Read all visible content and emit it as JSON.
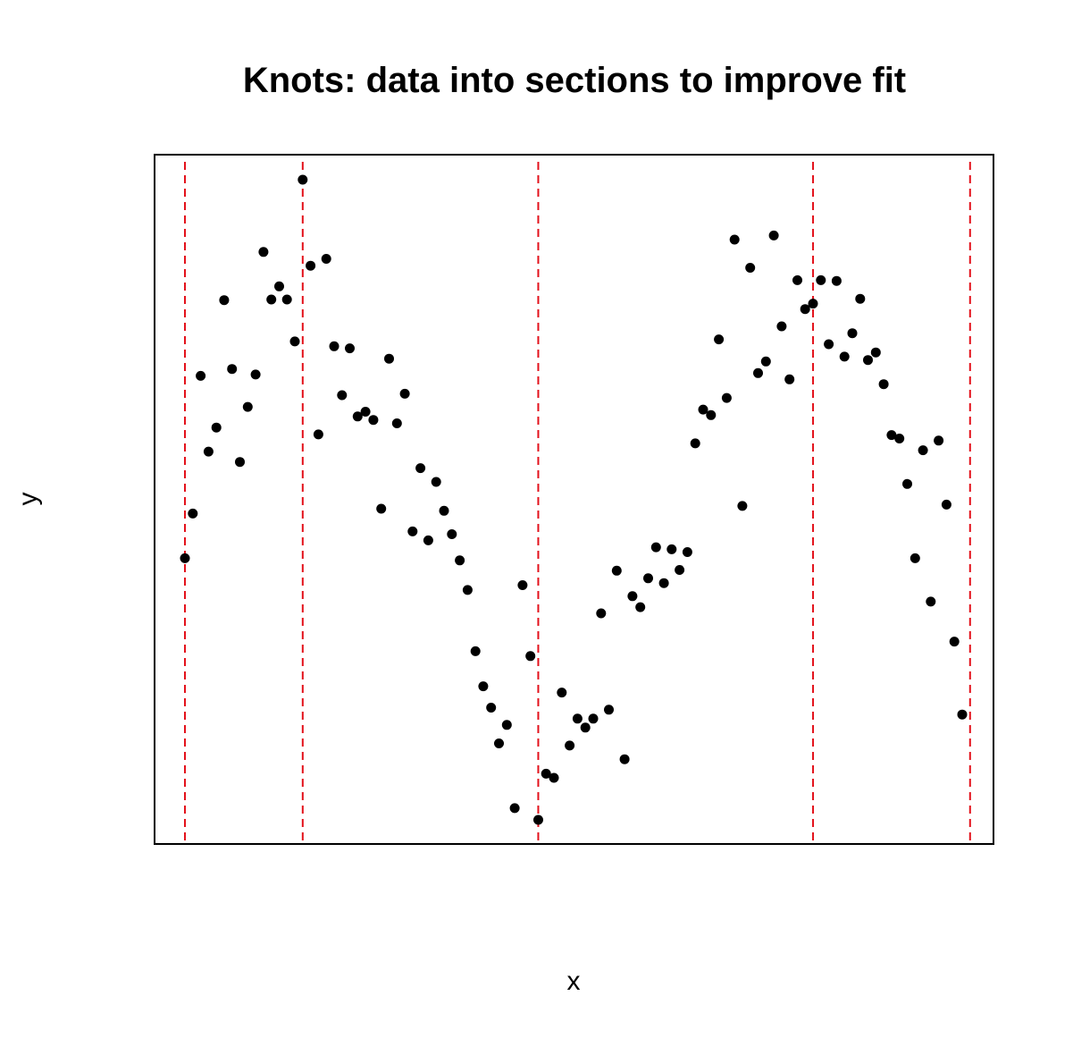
{
  "chart_data": {
    "type": "scatter",
    "title": "Knots: data into sections to improve fit",
    "xlabel": "x",
    "ylabel": "y",
    "xlim": [
      1,
      108
    ],
    "ylim": [
      0,
      100
    ],
    "grid": false,
    "axis_ticks_shown": false,
    "point_color": "#000000",
    "knot_color": "#e3111b",
    "knots": [
      1,
      16,
      46,
      81,
      101
    ],
    "series": [
      {
        "points": [
          [
            1,
            41.5
          ],
          [
            2,
            48
          ],
          [
            3,
            68
          ],
          [
            4,
            57
          ],
          [
            5,
            60.5
          ],
          [
            6,
            79
          ],
          [
            7,
            69
          ],
          [
            8,
            55.5
          ],
          [
            9,
            63.5
          ],
          [
            10,
            68.2
          ],
          [
            11,
            86
          ],
          [
            12,
            79.1
          ],
          [
            13,
            81
          ],
          [
            14,
            79.1
          ],
          [
            15,
            73
          ],
          [
            16,
            96.5
          ],
          [
            17,
            84
          ],
          [
            18,
            59.5
          ],
          [
            19,
            85
          ],
          [
            20,
            72.3
          ],
          [
            21,
            65.2
          ],
          [
            22,
            72
          ],
          [
            23,
            62.1
          ],
          [
            24,
            62.8
          ],
          [
            25,
            61.6
          ],
          [
            26,
            48.7
          ],
          [
            27,
            70.5
          ],
          [
            28,
            61.1
          ],
          [
            29,
            65.4
          ],
          [
            30,
            45.4
          ],
          [
            31,
            54.6
          ],
          [
            32,
            44.1
          ],
          [
            33,
            52.6
          ],
          [
            34,
            48.4
          ],
          [
            35,
            45
          ],
          [
            36,
            41.2
          ],
          [
            37,
            36.9
          ],
          [
            38,
            28
          ],
          [
            39,
            22.9
          ],
          [
            40,
            19.8
          ],
          [
            41,
            14.6
          ],
          [
            42,
            17.3
          ],
          [
            43,
            5.2
          ],
          [
            44,
            37.6
          ],
          [
            45,
            27.3
          ],
          [
            46,
            3.5
          ],
          [
            47,
            10.2
          ],
          [
            48,
            9.6
          ],
          [
            49,
            22
          ],
          [
            50,
            14.3
          ],
          [
            51,
            18.2
          ],
          [
            52,
            16.9
          ],
          [
            53,
            18.2
          ],
          [
            54,
            33.5
          ],
          [
            55,
            19.5
          ],
          [
            56,
            39.7
          ],
          [
            57,
            12.3
          ],
          [
            58,
            36
          ],
          [
            59,
            34.4
          ],
          [
            60,
            38.6
          ],
          [
            61,
            43.1
          ],
          [
            62,
            37.9
          ],
          [
            63,
            42.8
          ],
          [
            64,
            39.8
          ],
          [
            65,
            42.4
          ],
          [
            66,
            58.2
          ],
          [
            67,
            63.1
          ],
          [
            68,
            62.3
          ],
          [
            69,
            73.3
          ],
          [
            70,
            64.8
          ],
          [
            71,
            87.8
          ],
          [
            72,
            49.1
          ],
          [
            73,
            83.7
          ],
          [
            74,
            68.4
          ],
          [
            75,
            70.1
          ],
          [
            76,
            88.4
          ],
          [
            77,
            75.2
          ],
          [
            78,
            67.5
          ],
          [
            79,
            81.9
          ],
          [
            80,
            77.7
          ],
          [
            81,
            78.5
          ],
          [
            82,
            81.9
          ],
          [
            83,
            72.6
          ],
          [
            84,
            81.8
          ],
          [
            85,
            70.8
          ],
          [
            86,
            74.2
          ],
          [
            87,
            79.2
          ],
          [
            88,
            70.3
          ],
          [
            89,
            71.4
          ],
          [
            90,
            66.8
          ],
          [
            91,
            59.4
          ],
          [
            92,
            58.9
          ],
          [
            93,
            52.3
          ],
          [
            94,
            41.5
          ],
          [
            95,
            57.2
          ],
          [
            96,
            35.2
          ],
          [
            97,
            58.6
          ],
          [
            98,
            49.3
          ],
          [
            99,
            29.4
          ],
          [
            100,
            18.8
          ]
        ]
      }
    ]
  }
}
